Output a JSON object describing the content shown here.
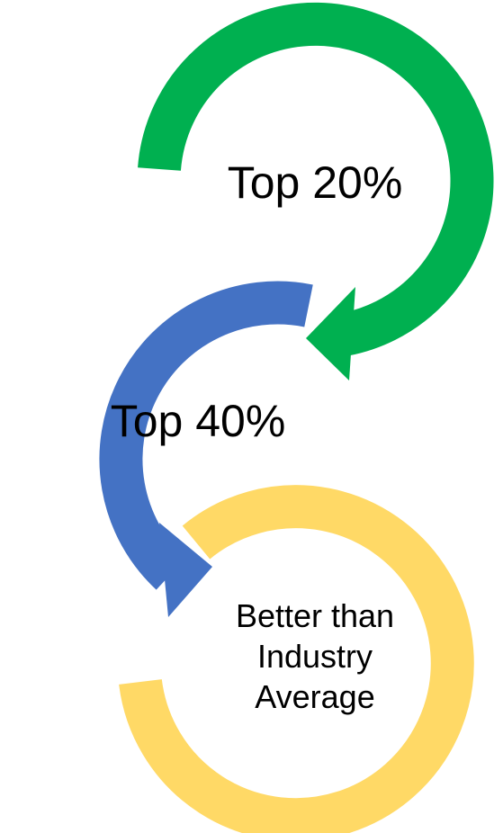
{
  "colors": {
    "green": "#00B050",
    "blue": "#4472C4",
    "yellow": "#FFD966",
    "text": "#000000"
  },
  "steps": [
    {
      "label": "Top 20%",
      "color_key": "green"
    },
    {
      "label": "Top 40%",
      "color_key": "blue"
    },
    {
      "label_lines": [
        "Better than",
        "Industry",
        "Average"
      ],
      "color_key": "yellow"
    }
  ]
}
